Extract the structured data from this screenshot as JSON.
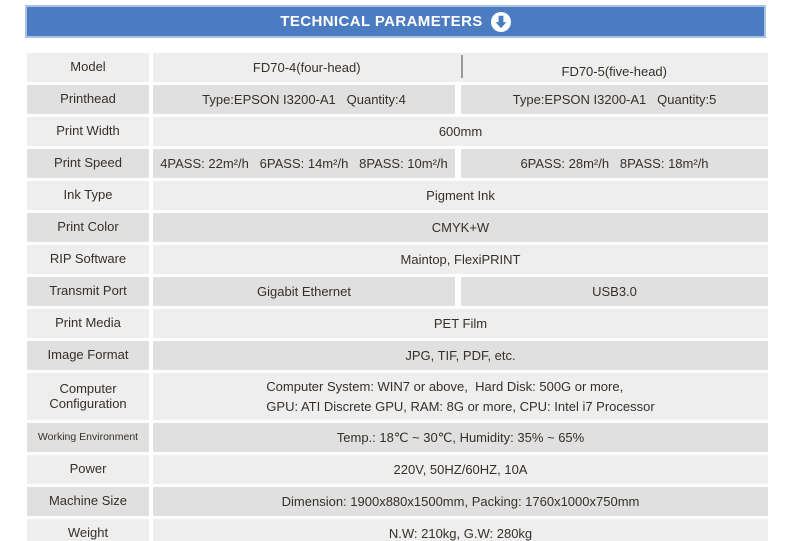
{
  "header": {
    "title": "TECHNICAL PARAMETERS"
  },
  "colors": {
    "accent_blue": "#4b7cc1",
    "bar_border": "#a9c3e3",
    "row_light": "#efeeee",
    "row_dark": "#e1e0e0",
    "text": "#353029",
    "divider": "#9a9a9a"
  },
  "icons": {
    "header_icon": "down-arrow-circle-icon"
  },
  "table": {
    "rows": [
      {
        "label": "Model",
        "type": "divided",
        "left": "FD70-4(four-head)",
        "right": "FD70-5(five-head)"
      },
      {
        "label": "Printhead",
        "type": "split",
        "left": "Type:EPSON I3200-A1   Quantity:4",
        "right": "Type:EPSON I3200-A1   Quantity:5"
      },
      {
        "label": "Print Width",
        "type": "full",
        "value": "600mm"
      },
      {
        "label": "Print Speed",
        "type": "split",
        "left": "4PASS: 22m²/h   6PASS: 14m²/h   8PASS: 10m²/h",
        "right": "6PASS: 28m²/h   8PASS: 18m²/h"
      },
      {
        "label": "Ink Type",
        "type": "full",
        "value": "Pigment Ink"
      },
      {
        "label": "Print Color",
        "type": "full",
        "value": "CMYK+W"
      },
      {
        "label": "RIP Software",
        "type": "full",
        "value": "Maintop, FlexiPRINT"
      },
      {
        "label": "Transmit Port",
        "type": "split",
        "left": "Gigabit Ethernet",
        "right": "USB3.0"
      },
      {
        "label": "Print Media",
        "type": "full",
        "value": "PET Film"
      },
      {
        "label": "Image Format",
        "type": "full",
        "value": "JPG, TIF, PDF, etc."
      },
      {
        "label": "Computer Configuration",
        "type": "multiline",
        "tall": true,
        "lines": [
          "Computer System: WIN7 or above,  Hard Disk: 500G or more,",
          "GPU: ATI Discrete GPU, RAM: 8G or more, CPU: Intel i7 Processor"
        ]
      },
      {
        "label": "Working Environment",
        "type": "full",
        "small_label": true,
        "value": "Temp.: 18℃ ~ 30℃, Humidity: 35% ~ 65%"
      },
      {
        "label": "Power",
        "type": "full",
        "value": "220V, 50HZ/60HZ, 10A"
      },
      {
        "label": "Machine Size",
        "type": "full",
        "value": "Dimension: 1900x880x1500mm, Packing: 1760x1000x750mm"
      },
      {
        "label": "Weight",
        "type": "full",
        "value": "N.W: 210kg, G.W: 280kg"
      }
    ]
  }
}
